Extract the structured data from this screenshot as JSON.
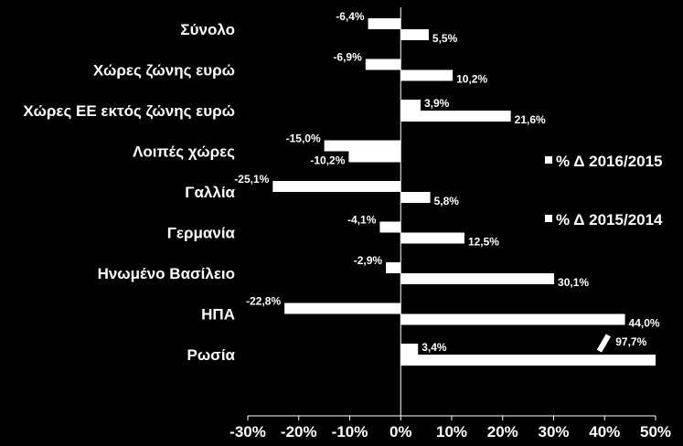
{
  "chart_data": {
    "type": "bar",
    "orientation": "horizontal",
    "title": "",
    "xlabel": "",
    "ylabel": "",
    "xlim": [
      -0.3,
      0.5
    ],
    "x_ticks": [
      -0.3,
      -0.2,
      -0.1,
      0.0,
      0.1,
      0.2,
      0.3,
      0.4,
      0.5
    ],
    "x_tick_labels": [
      "-30%",
      "-20%",
      "-10%",
      "0%",
      "10%",
      "20%",
      "30%",
      "40%",
      "50%"
    ],
    "grid": false,
    "legend_position": "right",
    "categories": [
      "Σύνολο",
      "Χώρες ζώνης ευρώ",
      "Χώρες ΕΕ εκτός ζώνης ευρώ",
      "Λοιπές χώρες",
      "Γαλλία",
      "Γερμανία",
      "Ηνωμένο Βασίλειο",
      "ΗΠΑ",
      "Ρωσία"
    ],
    "series": [
      {
        "name": "% Δ 2016/2015",
        "values": [
          -0.064,
          -0.069,
          0.039,
          -0.15,
          -0.251,
          -0.041,
          -0.029,
          -0.228,
          0.034
        ],
        "labels": [
          "-6,4%",
          "-6,9%",
          "3,9%",
          "-15,0%",
          "-25,1%",
          "-4,1%",
          "-2,9%",
          "-22,8%",
          "3,4%"
        ]
      },
      {
        "name": "% Δ 2015/2014",
        "values": [
          0.055,
          0.102,
          0.216,
          -0.102,
          0.058,
          0.125,
          0.301,
          0.44,
          0.977
        ],
        "labels": [
          "5,5%",
          "10,2%",
          "21,6%",
          "-10,2%",
          "5,8%",
          "12,5%",
          "30,1%",
          "44,0%",
          "97,7%"
        ]
      }
    ],
    "axis_break": {
      "value": 0.977,
      "label": "97,7%"
    },
    "colors": {
      "background": "#000000",
      "bars": "#ffffff",
      "text": "#ffffff"
    }
  }
}
